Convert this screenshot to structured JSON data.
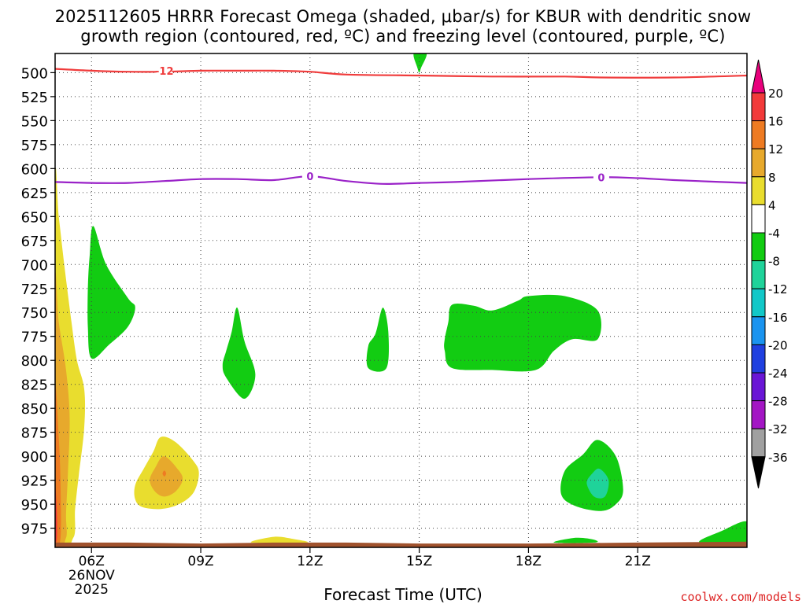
{
  "title": {
    "line1": "2025112605 HRRR Forecast Omega (shaded, μbar/s) for KBUR with dendritic snow",
    "line2": "growth region (contoured, red, ºC) and freezing level (contoured, purple, ºC)"
  },
  "credit": "coolwx.com/models",
  "chart_data": {
    "type": "heatmap",
    "title": "2025112605 HRRR Forecast Omega (shaded, μbar/s) for KBUR with dendritic snow growth region (contoured, red, ºC) and freezing level (contoured, purple, ºC)",
    "xlabel": "Forecast Time (UTC)",
    "ylabel": "",
    "x_range_hours_utc": [
      5,
      24
    ],
    "y_range_hpa": [
      480,
      995
    ],
    "y_axis_inverted": true,
    "grid": true,
    "x_ticks": [
      {
        "hour": 6,
        "label": "06Z",
        "sub1": "26NOV",
        "sub2": "2025"
      },
      {
        "hour": 9,
        "label": "09Z"
      },
      {
        "hour": 12,
        "label": "12Z"
      },
      {
        "hour": 15,
        "label": "15Z"
      },
      {
        "hour": 18,
        "label": "18Z"
      },
      {
        "hour": 21,
        "label": "21Z"
      }
    ],
    "y_ticks": [
      500,
      525,
      550,
      575,
      600,
      625,
      650,
      675,
      700,
      725,
      750,
      775,
      800,
      825,
      850,
      875,
      900,
      925,
      950,
      975
    ],
    "colorbar": {
      "levels": [
        20,
        16,
        12,
        8,
        4,
        -4,
        -8,
        -12,
        -16,
        -20,
        -24,
        -28,
        -32,
        -36
      ],
      "top_arrow_color": "#e8007c",
      "bottom_arrow_color": "#000000",
      "bins": [
        {
          "from": 20,
          "to": 16,
          "color": "#f23a3a"
        },
        {
          "from": 16,
          "to": 12,
          "color": "#ee7b22"
        },
        {
          "from": 12,
          "to": 8,
          "color": "#e7a92c"
        },
        {
          "from": 8,
          "to": 4,
          "color": "#e9dd2e"
        },
        {
          "from": 4,
          "to": -4,
          "color": "#ffffff"
        },
        {
          "from": -4,
          "to": -8,
          "color": "#12cc12"
        },
        {
          "from": -8,
          "to": -12,
          "color": "#1fd39a"
        },
        {
          "from": -12,
          "to": -16,
          "color": "#12c8c8"
        },
        {
          "from": -16,
          "to": -20,
          "color": "#1a94f0"
        },
        {
          "from": -20,
          "to": -24,
          "color": "#2040e0"
        },
        {
          "from": -24,
          "to": -28,
          "color": "#6a16d6"
        },
        {
          "from": -28,
          "to": -32,
          "color": "#a316c4"
        },
        {
          "from": -32,
          "to": -36,
          "color": "#a0a0a0"
        }
      ]
    },
    "contours": [
      {
        "name": "-12",
        "label": "-12",
        "color": "#f03c3c",
        "label_at": [
          8.0,
          498
        ],
        "points": [
          [
            5,
            496
          ],
          [
            6,
            498
          ],
          [
            7,
            499
          ],
          [
            8,
            499
          ],
          [
            9,
            498
          ],
          [
            10,
            498
          ],
          [
            11,
            498
          ],
          [
            12,
            499
          ],
          [
            13,
            502
          ],
          [
            15,
            503
          ],
          [
            17,
            504
          ],
          [
            19,
            504
          ],
          [
            20,
            505
          ],
          [
            22,
            505
          ],
          [
            24,
            503
          ]
        ]
      },
      {
        "name": "0",
        "label": "0",
        "color": "#9a22c8",
        "label_at": [
          12.0,
          608
        ],
        "label2_at": [
          20.0,
          609
        ],
        "points": [
          [
            5,
            614
          ],
          [
            6,
            615
          ],
          [
            7,
            615
          ],
          [
            8,
            613
          ],
          [
            9,
            611
          ],
          [
            10,
            611
          ],
          [
            11,
            612
          ],
          [
            12,
            608
          ],
          [
            13,
            613
          ],
          [
            14,
            616
          ],
          [
            15,
            615
          ],
          [
            16,
            614
          ],
          [
            18,
            611
          ],
          [
            20,
            609
          ],
          [
            21,
            610
          ],
          [
            22,
            612
          ],
          [
            24,
            615
          ]
        ]
      }
    ],
    "shaded_regions": [
      {
        "name": "omega-green-a",
        "bin": "-4 to -8",
        "color": "#12cc12",
        "points": [
          [
            6.05,
            660
          ],
          [
            6.4,
            700
          ],
          [
            7.0,
            735
          ],
          [
            7.2,
            745
          ],
          [
            7.0,
            765
          ],
          [
            6.5,
            783
          ],
          [
            6.0,
            798
          ],
          [
            5.9,
            765
          ],
          [
            5.9,
            725
          ],
          [
            5.95,
            690
          ]
        ]
      },
      {
        "name": "omega-green-b",
        "bin": "-4 to -8",
        "color": "#12cc12",
        "points": [
          [
            10.0,
            745
          ],
          [
            10.2,
            780
          ],
          [
            10.5,
            815
          ],
          [
            10.2,
            840
          ],
          [
            9.7,
            818
          ],
          [
            9.6,
            805
          ],
          [
            9.7,
            790
          ],
          [
            9.85,
            770
          ]
        ]
      },
      {
        "name": "omega-green-c",
        "bin": "-4 to -8",
        "color": "#12cc12",
        "points": [
          [
            14.0,
            745
          ],
          [
            14.15,
            770
          ],
          [
            14.1,
            808
          ],
          [
            13.6,
            808
          ],
          [
            13.6,
            785
          ],
          [
            13.8,
            772
          ]
        ]
      },
      {
        "name": "omega-green-d",
        "bin": "-4 to -8",
        "color": "#12cc12",
        "points": [
          [
            15.9,
            742
          ],
          [
            16.5,
            743
          ],
          [
            17.0,
            748
          ],
          [
            17.7,
            738
          ],
          [
            18.0,
            733
          ],
          [
            19.0,
            733
          ],
          [
            19.9,
            748
          ],
          [
            19.9,
            778
          ],
          [
            19.2,
            778
          ],
          [
            18.7,
            790
          ],
          [
            18.2,
            810
          ],
          [
            17.0,
            810
          ],
          [
            15.9,
            808
          ],
          [
            15.7,
            790
          ],
          [
            15.7,
            778
          ],
          [
            15.8,
            760
          ]
        ]
      },
      {
        "name": "omega-green-e",
        "bin": "-4 to -8",
        "color": "#12cc12",
        "points": [
          [
            19.9,
            883
          ],
          [
            20.4,
            900
          ],
          [
            20.6,
            935
          ],
          [
            20.4,
            950
          ],
          [
            20.0,
            957
          ],
          [
            19.3,
            952
          ],
          [
            18.9,
            940
          ],
          [
            19.0,
            915
          ],
          [
            19.5,
            898
          ]
        ]
      },
      {
        "name": "omega-green-f",
        "bin": "-4 to -8",
        "color": "#12cc12",
        "points": [
          [
            14.85,
            480
          ],
          [
            15.2,
            480
          ],
          [
            15.05,
            495
          ],
          [
            15.0,
            500
          ],
          [
            14.95,
            495
          ]
        ]
      },
      {
        "name": "omega-green-g",
        "bin": "-4 to -8",
        "color": "#12cc12",
        "points": [
          [
            22.7,
            990
          ],
          [
            23.3,
            978
          ],
          [
            24.0,
            968
          ],
          [
            24.0,
            990
          ]
        ]
      },
      {
        "name": "omega-green-h",
        "bin": "-4 to -8",
        "color": "#12cc12",
        "points": [
          [
            18.7,
            990
          ],
          [
            19.3,
            985
          ],
          [
            19.8,
            987
          ],
          [
            19.8,
            990
          ]
        ]
      },
      {
        "name": "omega-teal-e",
        "bin": "-8 to -12",
        "color": "#1fd39a",
        "points": [
          [
            19.95,
            913
          ],
          [
            20.2,
            925
          ],
          [
            20.1,
            942
          ],
          [
            19.8,
            942
          ],
          [
            19.6,
            928
          ],
          [
            19.75,
            918
          ]
        ]
      },
      {
        "name": "omega-yellow-a",
        "bin": "4 to 8",
        "color": "#e9dd2e",
        "points": [
          [
            7.9,
            880
          ],
          [
            8.3,
            885
          ],
          [
            8.8,
            905
          ],
          [
            8.95,
            918
          ],
          [
            8.8,
            938
          ],
          [
            8.4,
            950
          ],
          [
            7.9,
            955
          ],
          [
            7.4,
            953
          ],
          [
            7.2,
            945
          ],
          [
            7.2,
            930
          ],
          [
            7.45,
            912
          ],
          [
            7.7,
            895
          ]
        ]
      },
      {
        "name": "omega-gold-a",
        "bin": "8 to 12",
        "color": "#e7a92c",
        "points": [
          [
            8.0,
            900
          ],
          [
            8.4,
            915
          ],
          [
            8.5,
            925
          ],
          [
            8.3,
            937
          ],
          [
            8.0,
            942
          ],
          [
            7.75,
            937
          ],
          [
            7.6,
            925
          ],
          [
            7.75,
            912
          ]
        ]
      },
      {
        "name": "omega-orange-a",
        "bin": "12 to 16",
        "color": "#ee7b22",
        "points": [
          [
            8.0,
            915
          ],
          [
            8.05,
            918
          ],
          [
            8.0,
            921
          ],
          [
            7.95,
            918
          ]
        ]
      },
      {
        "name": "omega-yellow-left",
        "bin": "4 to 8",
        "color": "#e9dd2e",
        "points": [
          [
            5.0,
            620
          ],
          [
            5.1,
            650
          ],
          [
            5.25,
            700
          ],
          [
            5.45,
            760
          ],
          [
            5.6,
            800
          ],
          [
            5.8,
            830
          ],
          [
            5.8,
            870
          ],
          [
            5.65,
            920
          ],
          [
            5.55,
            955
          ],
          [
            5.5,
            985
          ],
          [
            5.0,
            985
          ]
        ]
      },
      {
        "name": "omega-gold-left",
        "bin": "8 to 12",
        "color": "#e7a92c",
        "points": [
          [
            5.0,
            720
          ],
          [
            5.1,
            760
          ],
          [
            5.3,
            810
          ],
          [
            5.4,
            860
          ],
          [
            5.35,
            920
          ],
          [
            5.3,
            960
          ],
          [
            5.3,
            985
          ],
          [
            5.0,
            985
          ]
        ]
      },
      {
        "name": "omega-orange-left",
        "bin": "12 to 16",
        "color": "#ee7b22",
        "points": [
          [
            5.0,
            830
          ],
          [
            5.1,
            880
          ],
          [
            5.15,
            930
          ],
          [
            5.15,
            985
          ],
          [
            5.0,
            985
          ]
        ]
      },
      {
        "name": "omega-red-left",
        "bin": "16 to 20",
        "color": "#f23a3a",
        "points": [
          [
            5.0,
            930
          ],
          [
            5.05,
            960
          ],
          [
            5.05,
            985
          ],
          [
            5.0,
            985
          ]
        ]
      },
      {
        "name": "omega-yellow-bottom",
        "bin": "4 to 8",
        "color": "#e9dd2e",
        "points": [
          [
            10.4,
            990
          ],
          [
            11.0,
            984
          ],
          [
            11.5,
            986
          ],
          [
            11.9,
            990
          ]
        ]
      }
    ],
    "terrain": {
      "name": "ground",
      "color": "#a0522d",
      "points": [
        [
          5,
          990
        ],
        [
          7,
          990
        ],
        [
          9,
          991
        ],
        [
          11,
          990
        ],
        [
          13,
          990
        ],
        [
          15,
          991
        ],
        [
          18,
          991
        ],
        [
          21,
          990
        ],
        [
          24,
          989
        ]
      ]
    }
  },
  "x_axis_title": "Forecast Time (UTC)"
}
